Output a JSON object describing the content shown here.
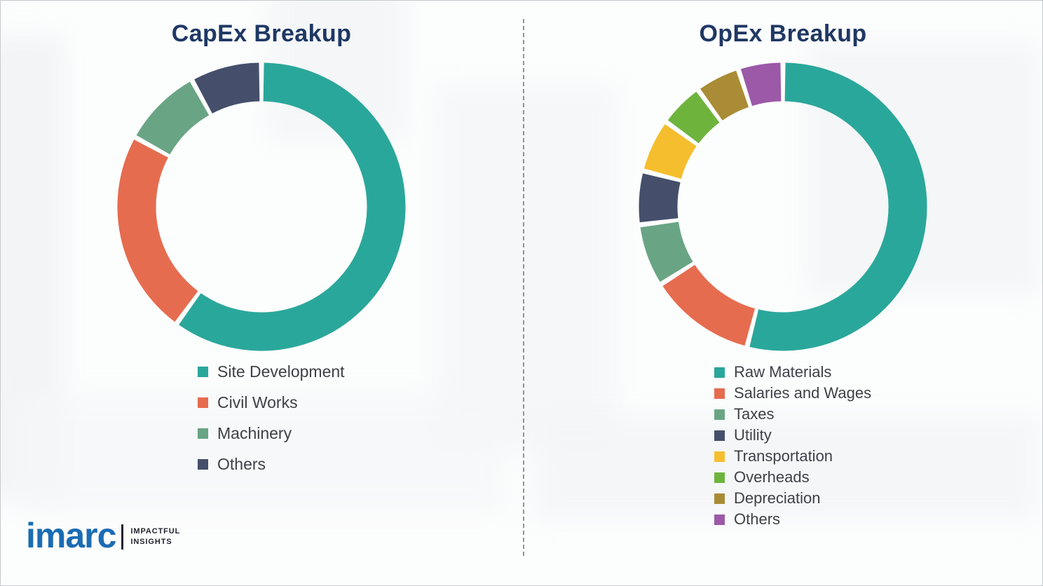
{
  "chart_data": [
    {
      "type": "pie",
      "subtype": "donut",
      "title": "CapEx Breakup",
      "labels": [
        "Site Development",
        "Civil Works",
        "Machinery",
        "Others"
      ],
      "values": [
        60,
        23,
        9,
        8
      ],
      "colors": [
        "#2aa79b",
        "#e66c4f",
        "#69a584",
        "#454f6b"
      ],
      "legend_position": "below-left",
      "start_angle_deg": 0,
      "direction": "clockwise"
    },
    {
      "type": "pie",
      "subtype": "donut",
      "title": "OpEx Breakup",
      "labels": [
        "Raw Materials",
        "Salaries and Wages",
        "Taxes",
        "Utility",
        "Transportation",
        "Overheads",
        "Depreciation",
        "Others"
      ],
      "values": [
        54,
        12,
        7,
        6,
        6,
        5,
        5,
        5
      ],
      "colors": [
        "#2aa79b",
        "#e66c4f",
        "#69a584",
        "#454f6b",
        "#f5be2e",
        "#6eb43c",
        "#a98c35",
        "#9c59a8"
      ],
      "legend_position": "below-left",
      "start_angle_deg": 0,
      "direction": "clockwise"
    }
  ],
  "logo": {
    "brand": "imarc",
    "tagline_1": "IMPACTFUL",
    "tagline_2": "INSIGHTS"
  }
}
